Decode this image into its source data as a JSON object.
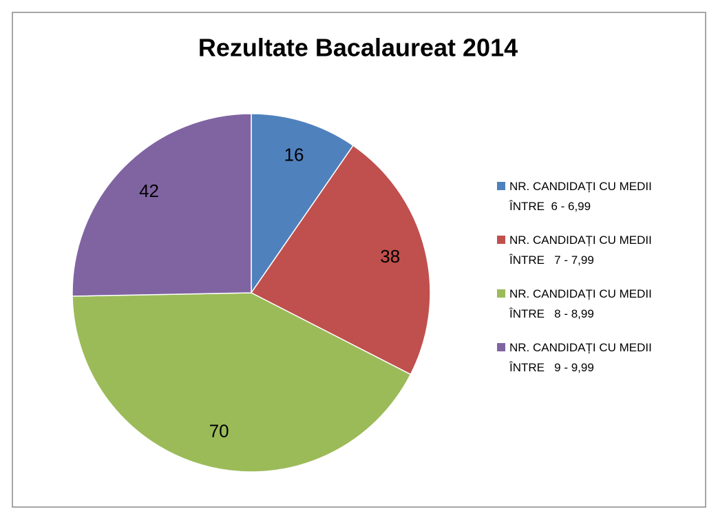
{
  "chart_data": {
    "type": "pie",
    "title": "Rezultate Bacalaureat 2014",
    "series": [
      {
        "name": "NR. CANDIDAȚI CU MEDII ÎNTRE  6 - 6,99",
        "color": "#4f81bd",
        "values": [
          16
        ]
      },
      {
        "name": "NR. CANDIDAȚI CU MEDII ÎNTRE   7 - 7,99",
        "color": "#c0504d",
        "values": [
          38
        ]
      },
      {
        "name": "NR. CANDIDAȚI CU MEDII ÎNTRE   8 - 8,99",
        "color": "#9bbb59",
        "values": [
          70
        ]
      },
      {
        "name": "NR. CANDIDAȚI CU MEDII ÎNTRE   9 - 9,99",
        "color": "#8064a2",
        "values": [
          42
        ]
      }
    ],
    "legend": "right"
  }
}
